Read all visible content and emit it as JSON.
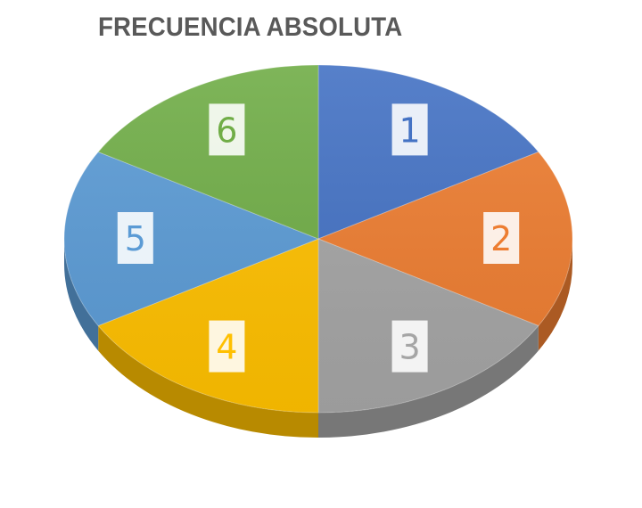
{
  "chart_data": {
    "type": "pie",
    "title": "FRECUENCIA ABSOLUTA",
    "categories": [
      "1",
      "2",
      "3",
      "4",
      "5",
      "6"
    ],
    "values": [
      1,
      1,
      1,
      1,
      1,
      1
    ],
    "colors": [
      "#4472C4",
      "#ED7D31",
      "#A5A5A5",
      "#FFC000",
      "#5B9BD5",
      "#70AD47"
    ],
    "data_labels": [
      "1",
      "2",
      "3",
      "4",
      "5",
      "6"
    ],
    "legend": "none",
    "style": "3d"
  }
}
